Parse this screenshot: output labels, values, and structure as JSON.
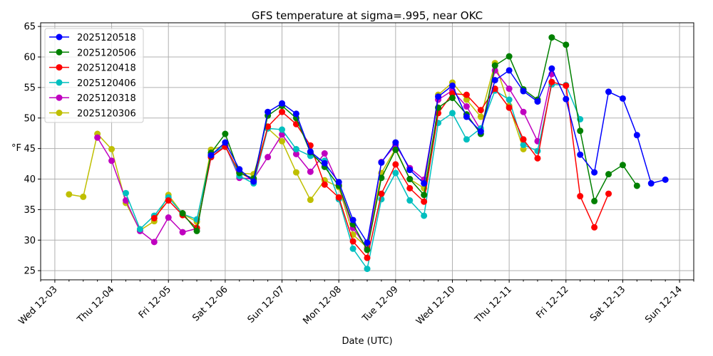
{
  "chart_data": {
    "type": "line",
    "title": "GFS temperature at sigma=.995, near OKC",
    "xlabel": "Date (UTC)",
    "ylabel": "°F",
    "x_unit": "hours since Wed 12-03 00Z",
    "xlim": [
      -6,
      270
    ],
    "ylim": [
      23.5,
      65.6
    ],
    "grid": true,
    "legend_position": "top-left",
    "y_ticks": [
      25,
      30,
      35,
      40,
      45,
      50,
      55,
      60,
      65
    ],
    "x_ticks": [
      {
        "hour": 0,
        "label": "Wed 12-03"
      },
      {
        "hour": 24,
        "label": "Thu 12-04"
      },
      {
        "hour": 48,
        "label": "Fri 12-05"
      },
      {
        "hour": 72,
        "label": "Sat 12-06"
      },
      {
        "hour": 96,
        "label": "Sun 12-07"
      },
      {
        "hour": 120,
        "label": "Mon 12-08"
      },
      {
        "hour": 144,
        "label": "Tue 12-09"
      },
      {
        "hour": 168,
        "label": "Wed 12-10"
      },
      {
        "hour": 192,
        "label": "Thu 12-11"
      },
      {
        "hour": 216,
        "label": "Fri 12-12"
      },
      {
        "hour": 240,
        "label": "Sat 12-13"
      },
      {
        "hour": 264,
        "label": "Sun 12-14"
      }
    ],
    "x_minor_step_hours": 6,
    "series": [
      {
        "name": "2025120518",
        "color": "#0000ff",
        "start_hour": 66,
        "step_hours": 6,
        "values": [
          43.9,
          46.0,
          41.6,
          39.6,
          51.0,
          52.4,
          50.7,
          44.5,
          42.6,
          39.5,
          33.3,
          29.6,
          42.7,
          46.0,
          41.5,
          39.3,
          53.5,
          55.3,
          50.2,
          47.8,
          56.2,
          57.8,
          54.4,
          52.7,
          58.1,
          53.1,
          44.0,
          41.1,
          54.3,
          53.2,
          47.2,
          39.3,
          39.9
        ]
      },
      {
        "name": "2025120506",
        "color": "#008000",
        "start_hour": 54,
        "step_hours": 6,
        "values": [
          34.4,
          31.5,
          44.3,
          47.4,
          41.0,
          40.1,
          50.4,
          52.0,
          50.0,
          44.4,
          42.0,
          38.9,
          32.6,
          28.4,
          40.2,
          44.8,
          40.0,
          37.4,
          51.7,
          53.3,
          50.6,
          47.4,
          58.6,
          60.1,
          54.7,
          53.0,
          63.2,
          62.0,
          47.9,
          36.4,
          40.8,
          42.3,
          38.9
        ]
      },
      {
        "name": "2025120418",
        "color": "#ff0000",
        "start_hour": 42,
        "step_hours": 6,
        "values": [
          33.6,
          36.5,
          34.1,
          32.0,
          43.6,
          45.3,
          41.1,
          39.8,
          48.6,
          51.0,
          49.0,
          45.5,
          39.1,
          37.0,
          29.8,
          27.1,
          37.6,
          42.4,
          38.5,
          36.3,
          50.8,
          54.0,
          53.8,
          51.3,
          54.8,
          51.7,
          46.5,
          43.4,
          55.9,
          55.3,
          37.2,
          32.1,
          37.6
        ]
      },
      {
        "name": "2025120406",
        "color": "#00bfbf",
        "start_hour": 30,
        "step_hours": 6,
        "values": [
          37.7,
          31.8,
          34.0,
          37.0,
          34.3,
          33.4,
          44.0,
          45.5,
          40.5,
          39.3,
          48.3,
          48.1,
          44.9,
          43.8,
          43.0,
          36.7,
          28.6,
          25.3,
          36.7,
          41.0,
          36.5,
          34.0,
          49.2,
          50.8,
          46.5,
          48.3,
          54.5,
          53.0,
          45.6,
          44.6,
          55.5,
          55.4,
          49.8
        ]
      },
      {
        "name": "2025120318",
        "color": "#bf00bf",
        "start_hour": 18,
        "step_hours": 6,
        "values": [
          46.8,
          43.0,
          36.5,
          31.5,
          29.7,
          33.7,
          31.3,
          31.9,
          43.6,
          45.5,
          40.2,
          40.0,
          43.6,
          47.3,
          44.1,
          41.2,
          44.2,
          39.0,
          32.0,
          28.6,
          42.8,
          45.6,
          41.8,
          39.9,
          53.0,
          54.5,
          51.9,
          48.0,
          57.8,
          54.8,
          51.0,
          46.2,
          57.2
        ]
      },
      {
        "name": "2025120306",
        "color": "#bfbf00",
        "start_hour": 6,
        "step_hours": 6,
        "values": [
          37.5,
          37.1,
          47.4,
          44.9,
          36.1,
          31.6,
          33.1,
          37.4,
          34.3,
          33.0,
          44.8,
          45.5,
          41.0,
          40.8,
          48.3,
          46.2,
          41.1,
          36.6,
          39.8,
          38.7,
          30.9,
          28.8,
          41.0,
          45.0,
          40.0,
          38.5,
          53.8,
          55.8,
          53.0,
          50.2,
          59.0,
          52.0,
          44.9
        ]
      }
    ]
  }
}
